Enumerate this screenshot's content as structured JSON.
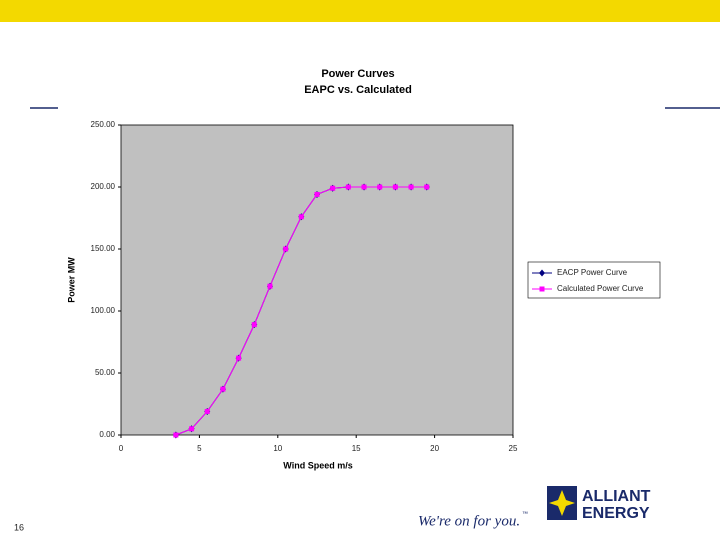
{
  "chart_data": {
    "type": "line",
    "title": "Power Curves",
    "subtitle": "EAPC vs. Calculated",
    "x_label": "Wind Speed m/s",
    "y_label": "Power MW",
    "xlim": [
      0,
      25
    ],
    "xticks": [
      0,
      5,
      10,
      15,
      20,
      25
    ],
    "ylim": [
      0,
      250
    ],
    "yticks": [
      {
        "value": 0,
        "label": "0.00"
      },
      {
        "value": 50,
        "label": "50.00"
      },
      {
        "value": 100,
        "label": "100.00"
      },
      {
        "value": 150,
        "label": "150.00"
      },
      {
        "value": 200,
        "label": "200.00"
      },
      {
        "value": 250,
        "label": "250.00"
      }
    ],
    "plot_background": "#c0c0c0",
    "series": [
      {
        "name": "EACP Power Curve",
        "color": "#000080",
        "marker": "diamond",
        "x": [
          3.5,
          4.5,
          5.5,
          6.5,
          7.5,
          8.5,
          9.5,
          10.5,
          11.5,
          12.5,
          13.5,
          14.5,
          15.5,
          16.5,
          17.5,
          18.5,
          19.5
        ],
        "values": [
          0,
          5,
          19,
          37,
          62,
          89,
          120,
          150,
          176,
          194,
          199,
          200,
          200,
          200,
          200,
          200,
          200
        ]
      },
      {
        "name": "Calculated Power Curve",
        "color": "#ff00ff",
        "marker": "square",
        "x": [
          3.5,
          4.5,
          5.5,
          6.5,
          7.5,
          8.5,
          9.5,
          10.5,
          11.5,
          12.5,
          13.5,
          14.5,
          15.5,
          16.5,
          17.5,
          18.5,
          19.5
        ],
        "values": [
          0,
          5,
          19,
          37,
          62,
          89,
          120,
          150,
          176,
          194,
          199,
          200,
          200,
          200,
          200,
          200,
          200
        ]
      }
    ]
  },
  "slide": {
    "page_number": "16",
    "tagline": "We're on for you.",
    "tagline_mark": "™",
    "logo_line1": "ALLIANT",
    "logo_line2": "ENERGY"
  }
}
